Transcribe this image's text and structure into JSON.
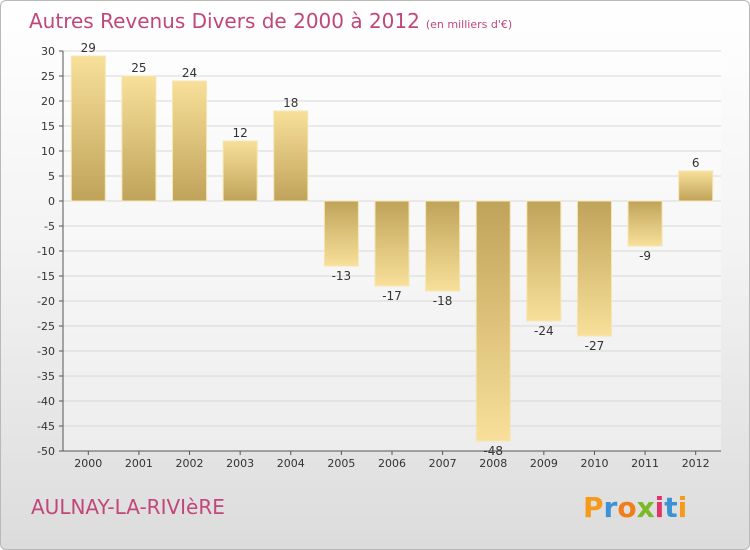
{
  "title": "Autres Revenus Divers de 2000 à 2012",
  "title_unit": "(en milliers d'€)",
  "town": "AULNAY-LA-RIVIèRE",
  "logo": {
    "letters": [
      "P",
      "r",
      "o",
      "x",
      "i",
      "t",
      "i"
    ],
    "colors": [
      "#f59a1b",
      "#3b93d6",
      "#ef7f1a",
      "#7cb928",
      "#e2336f",
      "#3b93d6",
      "#f59a1b"
    ]
  },
  "colors": {
    "title": "#c1467a",
    "bar_light": "#f8e09a",
    "bar_dark": "#c0a35a",
    "axis": "#555555",
    "grid": "#d8d8d8"
  },
  "chart_data": {
    "type": "bar",
    "categories": [
      "2000",
      "2001",
      "2002",
      "2003",
      "2004",
      "2005",
      "2006",
      "2007",
      "2008",
      "2009",
      "2010",
      "2011",
      "2012"
    ],
    "values": [
      29,
      25,
      24,
      12,
      18,
      -13,
      -17,
      -18,
      -48,
      -24,
      -27,
      -9,
      6
    ],
    "data_labels": [
      "29",
      "25",
      "24",
      "12",
      "18",
      "-13",
      "-17",
      "-18",
      "-48",
      "-24",
      "-27",
      "-9",
      "6"
    ],
    "ylim": [
      -50,
      30
    ],
    "yticks": [
      30,
      25,
      20,
      15,
      10,
      5,
      0,
      -5,
      -10,
      -15,
      -20,
      -25,
      -30,
      -35,
      -40,
      -45,
      -50
    ],
    "title": "Autres Revenus Divers de 2000 à 2012",
    "xlabel": "",
    "ylabel": "",
    "grid": true
  }
}
